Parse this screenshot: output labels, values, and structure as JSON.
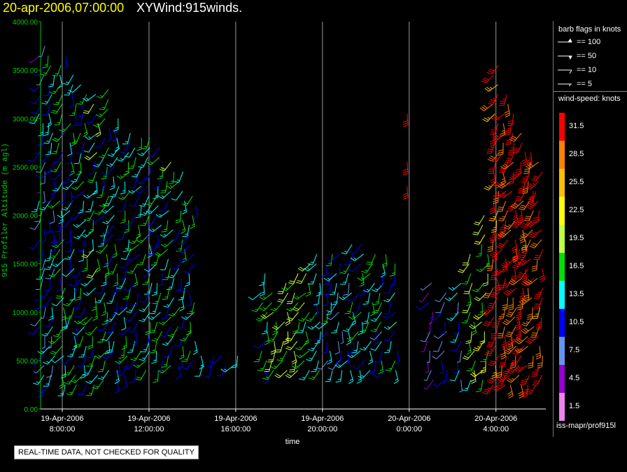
{
  "header": {
    "date": "20-apr-2006,07:00:00",
    "product": "XYWind:915winds."
  },
  "chart_data": {
    "type": "scatter",
    "ylabel": "915 Profiler Altitude (m agl)",
    "xlabel": "time",
    "ylim": [
      0,
      4000
    ],
    "yticks": [
      "0.00",
      "500.00",
      "1000.00",
      "1500.00",
      "2000.00",
      "2500.00",
      "3000.00",
      "3500.00",
      "4000.00"
    ],
    "xticks": [
      {
        "date": "19-Apr-2006",
        "time": "8:00:00"
      },
      {
        "date": "19-Apr-2006",
        "time": "12:00:00"
      },
      {
        "date": "19-Apr-2006",
        "time": "16:00:00"
      },
      {
        "date": "19-Apr-2006",
        "time": "20:00:00"
      },
      {
        "date": "20-Apr-2006",
        "time": "0:00:00"
      },
      {
        "date": "20-Apr-2006",
        "time": "4:00:00"
      }
    ],
    "xlim_hours": [
      -1,
      22.3
    ],
    "grid": "vertical",
    "columns": [
      {
        "h": -0.9,
        "bottom": 250,
        "top": 3800,
        "kt": 9
      },
      {
        "h": -0.5,
        "bottom": 250,
        "top": 3650,
        "kt": 12
      },
      {
        "h": 0.0,
        "bottom": 250,
        "top": 3700,
        "kt": 14
      },
      {
        "h": 0.5,
        "bottom": 250,
        "top": 3500,
        "kt": 13
      },
      {
        "h": 1.0,
        "bottom": 250,
        "top": 3400,
        "kt": 13
      },
      {
        "h": 1.5,
        "bottom": 250,
        "top": 3300,
        "kt": 15
      },
      {
        "h": 2.0,
        "bottom": 300,
        "top": 3300,
        "kt": 14
      },
      {
        "h": 2.5,
        "bottom": 300,
        "top": 3000,
        "kt": 13
      },
      {
        "h": 3.0,
        "bottom": 350,
        "top": 2900,
        "kt": 14
      },
      {
        "h": 3.5,
        "bottom": 400,
        "top": 2800,
        "kt": 13
      },
      {
        "h": 4.0,
        "bottom": 400,
        "top": 2800,
        "kt": 14
      },
      {
        "h": 4.5,
        "bottom": 400,
        "top": 2700,
        "kt": 13
      },
      {
        "h": 5.0,
        "bottom": 450,
        "top": 2600,
        "kt": 15
      },
      {
        "h": 5.5,
        "bottom": 450,
        "top": 2500,
        "kt": 14
      },
      {
        "h": 6.0,
        "bottom": 500,
        "top": 2200,
        "kt": 13
      },
      {
        "h": 6.5,
        "bottom": 450,
        "top": 600,
        "kt": 13
      },
      {
        "h": 7.0,
        "bottom": 450,
        "top": 550,
        "kt": 12
      },
      {
        "h": 7.5,
        "bottom": 450,
        "top": 550,
        "kt": 12
      },
      {
        "h": 8.0,
        "bottom": 450,
        "top": 550,
        "kt": 11
      },
      {
        "h": 9.3,
        "bottom": 400,
        "top": 1400,
        "kt": 14
      },
      {
        "h": 9.8,
        "bottom": 400,
        "top": 1200,
        "kt": 19
      },
      {
        "h": 10.3,
        "bottom": 400,
        "top": 1300,
        "kt": 19
      },
      {
        "h": 10.8,
        "bottom": 400,
        "top": 1400,
        "kt": 18
      },
      {
        "h": 11.3,
        "bottom": 400,
        "top": 1500,
        "kt": 17
      },
      {
        "h": 11.8,
        "bottom": 400,
        "top": 1600,
        "kt": 14
      },
      {
        "h": 12.3,
        "bottom": 400,
        "top": 1600,
        "kt": 12
      },
      {
        "h": 12.8,
        "bottom": 400,
        "top": 1650,
        "kt": 11
      },
      {
        "h": 13.3,
        "bottom": 400,
        "top": 1700,
        "kt": 12
      },
      {
        "h": 13.8,
        "bottom": 400,
        "top": 1700,
        "kt": 13
      },
      {
        "h": 14.3,
        "bottom": 400,
        "top": 1650,
        "kt": 14
      },
      {
        "h": 14.8,
        "bottom": 400,
        "top": 1600,
        "kt": 12
      },
      {
        "h": 15.3,
        "bottom": 400,
        "top": 1500,
        "kt": 13
      },
      {
        "h": 17.0,
        "bottom": 300,
        "top": 1300,
        "kt": 7
      },
      {
        "h": 17.6,
        "bottom": 300,
        "top": 1200,
        "kt": 8
      },
      {
        "h": 18.3,
        "bottom": 300,
        "top": 1300,
        "kt": 10
      },
      {
        "h": 18.9,
        "bottom": 300,
        "top": 1600,
        "kt": 17
      },
      {
        "h": 19.5,
        "bottom": 300,
        "top": 2000,
        "kt": 20
      },
      {
        "h": 20.0,
        "bottom": 250,
        "top": 3600,
        "kt": 30
      },
      {
        "h": 20.4,
        "bottom": 250,
        "top": 3300,
        "kt": 31
      },
      {
        "h": 20.8,
        "bottom": 250,
        "top": 3100,
        "kt": 31
      },
      {
        "h": 21.2,
        "bottom": 250,
        "top": 2900,
        "kt": 31
      },
      {
        "h": 21.6,
        "bottom": 250,
        "top": 2700,
        "kt": 31
      },
      {
        "h": 22.0,
        "bottom": 250,
        "top": 2600,
        "kt": 30
      }
    ],
    "isolated": [
      {
        "h": 15.9,
        "alt": 3050,
        "kt": 32
      },
      {
        "h": 15.9,
        "alt": 2550,
        "kt": 32
      },
      {
        "h": 15.9,
        "alt": 2300,
        "kt": 32
      }
    ]
  },
  "legend": {
    "barb_title": "barb flags in knots",
    "barbs": [
      "== 100",
      "== 50",
      "== 10",
      "== 5"
    ],
    "speed_title": "wind-speed: knots",
    "speed_bins": [
      {
        "label": "31.5",
        "color": "#ff0000"
      },
      {
        "label": "28.5",
        "color": "#ff8000"
      },
      {
        "label": "25.5",
        "color": "#ffbf00"
      },
      {
        "label": "22.5",
        "color": "#ffff00"
      },
      {
        "label": "19.5",
        "color": "#bfff40"
      },
      {
        "label": "16.5",
        "color": "#00e000"
      },
      {
        "label": "13.5",
        "color": "#00ffff"
      },
      {
        "label": "10.5",
        "color": "#0000ff"
      },
      {
        "label": "7.5",
        "color": "#6495ed"
      },
      {
        "label": "4.5",
        "color": "#9400d3"
      },
      {
        "label": "1.5",
        "color": "#ee82ee"
      }
    ]
  },
  "footer": {
    "notice": "REAL-TIME DATA, NOT CHECKED FOR QUALITY",
    "source": "iss-mapr/prof915l"
  }
}
